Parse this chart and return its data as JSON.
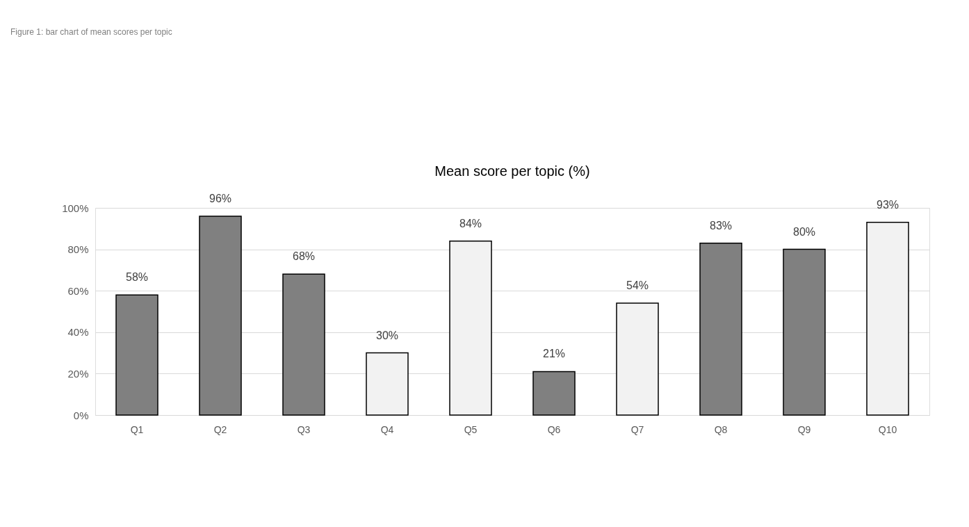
{
  "chart_data": {
    "type": "bar",
    "title": "Mean score per topic (%)",
    "annotations": [
      "Figure 1: bar chart of mean scores per topic"
    ],
    "categories": [
      "Q1",
      "Q2",
      "Q3",
      "Q4",
      "Q5",
      "Q6",
      "Q7",
      "Q8",
      "Q9",
      "Q10"
    ],
    "values": [
      58,
      96,
      68,
      30,
      84,
      21,
      54,
      83,
      80,
      93
    ],
    "colors": [
      "#808080",
      "#808080",
      "#808080",
      "#f2f2f2",
      "#f2f2f2",
      "#808080",
      "#f2f2f2",
      "#808080",
      "#808080",
      "#f2f2f2"
    ],
    "ylim": [
      0,
      100
    ],
    "yticks": [
      {
        "value": 0,
        "label": "0%"
      },
      {
        "value": 20,
        "label": "20%"
      },
      {
        "value": 40,
        "label": "40%"
      },
      {
        "value": 60,
        "label": "60%"
      },
      {
        "value": 80,
        "label": "80%"
      },
      {
        "value": 100,
        "label": "100%"
      }
    ],
    "value_labels": [
      "58%",
      "96%",
      "68%",
      "30%",
      "84%",
      "21%",
      "54%",
      "83%",
      "80%",
      "93%"
    ],
    "grid": "y"
  }
}
